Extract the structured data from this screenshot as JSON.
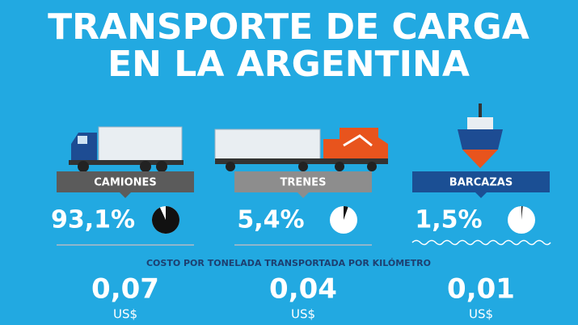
{
  "title": [
    "TRANSPORTE DE CARGA",
    "EN LA ARGENTINA"
  ],
  "modes": [
    {
      "name": "CAMIONES",
      "share": {
        "value": 93.1,
        "label": "93,1%"
      },
      "cost": "0,07",
      "currency": "US$"
    },
    {
      "name": "TRENES",
      "share": {
        "value": 5.4,
        "label": "5,4%"
      },
      "cost": "0,04",
      "currency": "US$"
    },
    {
      "name": "BARCAZAS",
      "share": {
        "value": 1.5,
        "label": "1,5%"
      },
      "cost": "0,01",
      "currency": "US$"
    }
  ],
  "cost_heading": "COSTO POR TONELADA TRANSPORTADA POR KILÓMETRO"
}
